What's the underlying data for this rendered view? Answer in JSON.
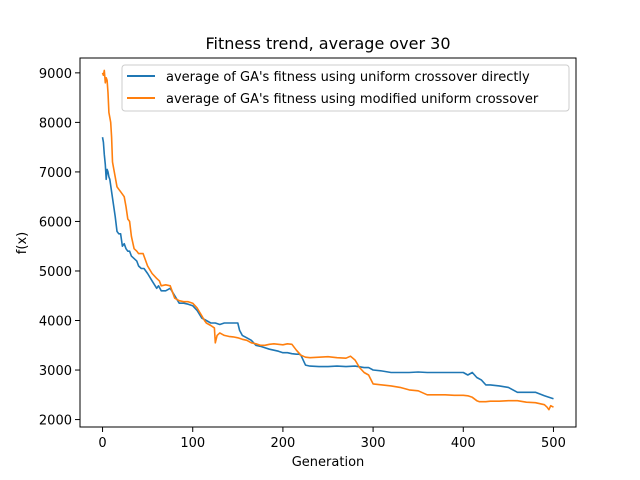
{
  "chart_data": {
    "type": "line",
    "title": "Fitness trend, average over 30",
    "xlabel": "Generation",
    "ylabel": "f(x)",
    "xlim": [
      -25,
      525
    ],
    "ylim": [
      1850,
      9300
    ],
    "xticks": [
      0,
      100,
      200,
      300,
      400,
      500
    ],
    "yticks": [
      2000,
      3000,
      4000,
      5000,
      6000,
      7000,
      8000,
      9000
    ],
    "grid": false,
    "legend_position": "top-right",
    "series": [
      {
        "name": "average of GA's fitness using uniform crossover directly",
        "color": "#1f77b4",
        "x": [
          0,
          1,
          2,
          3,
          4,
          5,
          6,
          7,
          8,
          10,
          12,
          14,
          16,
          18,
          20,
          22,
          24,
          26,
          28,
          30,
          32,
          35,
          38,
          40,
          43,
          46,
          48,
          50,
          55,
          60,
          62,
          65,
          70,
          75,
          80,
          85,
          90,
          95,
          100,
          105,
          110,
          115,
          120,
          125,
          130,
          135,
          140,
          145,
          150,
          152,
          155,
          160,
          165,
          170,
          175,
          180,
          185,
          190,
          195,
          200,
          205,
          210,
          215,
          218,
          220,
          225,
          230,
          240,
          250,
          260,
          270,
          280,
          290,
          295,
          300,
          310,
          320,
          330,
          340,
          350,
          360,
          370,
          380,
          390,
          400,
          405,
          410,
          415,
          420,
          425,
          430,
          440,
          450,
          460,
          470,
          480,
          490,
          495,
          500
        ],
        "y": [
          7700,
          7600,
          7350,
          7150,
          6850,
          7050,
          7000,
          6900,
          6850,
          6600,
          6350,
          6100,
          5800,
          5750,
          5750,
          5500,
          5550,
          5450,
          5400,
          5400,
          5300,
          5250,
          5200,
          5100,
          5050,
          5050,
          5000,
          4950,
          4800,
          4650,
          4700,
          4600,
          4600,
          4650,
          4500,
          4350,
          4350,
          4330,
          4300,
          4200,
          4050,
          4000,
          3950,
          3950,
          3920,
          3950,
          3950,
          3950,
          3950,
          3800,
          3700,
          3650,
          3600,
          3500,
          3480,
          3450,
          3420,
          3400,
          3380,
          3350,
          3350,
          3330,
          3320,
          3320,
          3300,
          3100,
          3080,
          3070,
          3070,
          3080,
          3070,
          3080,
          3050,
          3050,
          3000,
          2980,
          2950,
          2950,
          2950,
          2960,
          2950,
          2950,
          2950,
          2950,
          2950,
          2900,
          2950,
          2850,
          2800,
          2700,
          2700,
          2680,
          2650,
          2550,
          2550,
          2550,
          2480,
          2450,
          2420
        ]
      },
      {
        "name": "average of GA's fitness using modified uniform crossover",
        "color": "#ff7f0e",
        "x": [
          0,
          1,
          2,
          3,
          4,
          5,
          6,
          7,
          8,
          9,
          10,
          11,
          12,
          14,
          16,
          18,
          20,
          22,
          24,
          26,
          28,
          30,
          32,
          35,
          38,
          40,
          45,
          50,
          55,
          60,
          63,
          65,
          70,
          75,
          80,
          85,
          90,
          95,
          100,
          105,
          110,
          113,
          115,
          120,
          124,
          125,
          127,
          130,
          135,
          140,
          145,
          150,
          155,
          160,
          165,
          170,
          175,
          180,
          185,
          190,
          195,
          200,
          205,
          210,
          215,
          220,
          225,
          230,
          240,
          250,
          260,
          270,
          275,
          280,
          285,
          290,
          295,
          300,
          305,
          310,
          320,
          330,
          340,
          350,
          360,
          370,
          380,
          390,
          400,
          405,
          410,
          415,
          418,
          420,
          425,
          430,
          440,
          450,
          460,
          470,
          480,
          490,
          493,
          495,
          497,
          500
        ],
        "y": [
          9000,
          8950,
          9050,
          8800,
          8900,
          8850,
          8600,
          8200,
          8100,
          8000,
          7700,
          7200,
          7100,
          6900,
          6700,
          6650,
          6600,
          6550,
          6500,
          6300,
          6050,
          6000,
          5700,
          5450,
          5400,
          5350,
          5350,
          5100,
          4950,
          4850,
          4800,
          4700,
          4720,
          4700,
          4450,
          4400,
          4380,
          4380,
          4350,
          4250,
          4100,
          4000,
          3950,
          3900,
          3850,
          3550,
          3700,
          3750,
          3700,
          3680,
          3670,
          3650,
          3620,
          3600,
          3550,
          3530,
          3500,
          3500,
          3520,
          3530,
          3520,
          3510,
          3530,
          3520,
          3400,
          3300,
          3260,
          3250,
          3260,
          3270,
          3250,
          3240,
          3280,
          3200,
          3050,
          2950,
          2900,
          2720,
          2710,
          2700,
          2680,
          2650,
          2600,
          2580,
          2500,
          2500,
          2500,
          2490,
          2490,
          2480,
          2450,
          2380,
          2360,
          2360,
          2360,
          2370,
          2370,
          2380,
          2380,
          2350,
          2340,
          2300,
          2250,
          2200,
          2280,
          2250
        ]
      }
    ]
  }
}
